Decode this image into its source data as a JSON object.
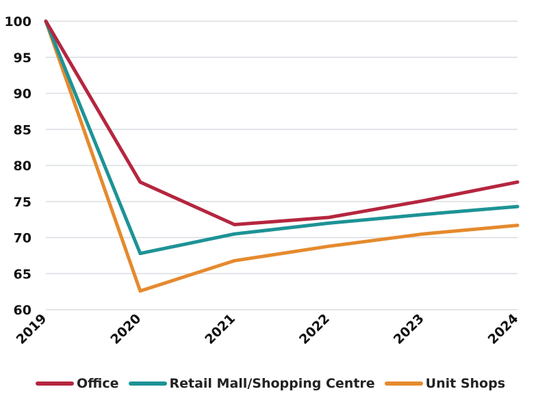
{
  "chart_data": {
    "type": "line",
    "title": "",
    "xlabel": "",
    "ylabel": "",
    "categories": [
      "2019",
      "2020",
      "2021",
      "2022",
      "2023",
      "2024"
    ],
    "y_ticks": [
      "100",
      "95",
      "90",
      "85",
      "80",
      "75",
      "70",
      "65",
      "60"
    ],
    "ylim": [
      60,
      100
    ],
    "grid": "horizontal",
    "legend_position": "bottom",
    "series": [
      {
        "name": "Office",
        "color": "#b5263f",
        "values": [
          100,
          77.7,
          71.8,
          72.8,
          75.1,
          77.7
        ]
      },
      {
        "name": "Retail Mall/Shopping Centre",
        "color": "#1d9396",
        "values": [
          100,
          67.8,
          70.5,
          72.0,
          73.2,
          74.3
        ]
      },
      {
        "name": "Unit Shops",
        "color": "#e58a2e",
        "values": [
          100,
          62.6,
          66.8,
          68.8,
          70.5,
          71.7
        ]
      }
    ]
  }
}
